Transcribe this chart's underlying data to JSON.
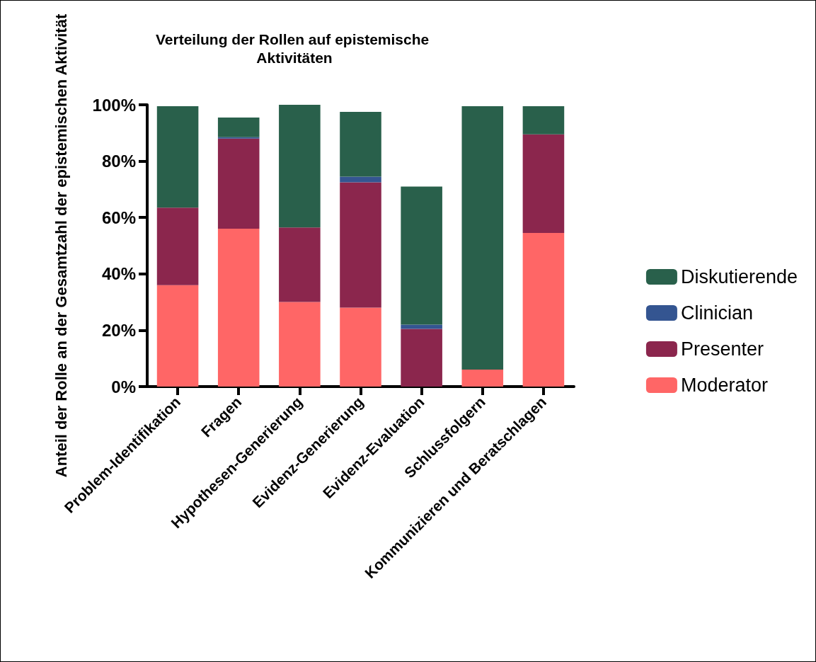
{
  "chart_data": {
    "type": "bar",
    "title": "Verteilung der Rollen auf epistemische Aktivitäten",
    "ylabel": "Anteil der Rolle an der Gesamtzahl der epistemischen Aktivität",
    "categories": [
      "Problem-Identifikation",
      "Fragen",
      "Hypothesen-Generierung",
      "Evidenz-Generierung",
      "Evidenz-Evaluation",
      "Schlussfolgern",
      "Kommunizieren und Beratschlagen"
    ],
    "stacked": true,
    "series": [
      {
        "name": "Moderator",
        "color": "#ff6666",
        "values": [
          36,
          56,
          30,
          28,
          0,
          6,
          54.5
        ]
      },
      {
        "name": "Presenter",
        "color": "#8b264d",
        "values": [
          27.5,
          32,
          26.5,
          44.5,
          20.5,
          0,
          35
        ]
      },
      {
        "name": "Clinician",
        "color": "#345591",
        "values": [
          0,
          0.5,
          0,
          2,
          1.5,
          0,
          0
        ]
      },
      {
        "name": "Diskutierende",
        "color": "#29604b",
        "values": [
          36,
          7,
          43.5,
          23,
          49,
          93.5,
          10
        ]
      }
    ],
    "ylim": [
      0,
      100
    ],
    "yticks": [
      {
        "value": 0,
        "label": "0%"
      },
      {
        "value": 20,
        "label": "20%"
      },
      {
        "value": 40,
        "label": "40%"
      },
      {
        "value": 60,
        "label": "60%"
      },
      {
        "value": 80,
        "label": "80%"
      },
      {
        "value": 100,
        "label": "100%"
      }
    ],
    "grid": false,
    "legend": "right"
  }
}
